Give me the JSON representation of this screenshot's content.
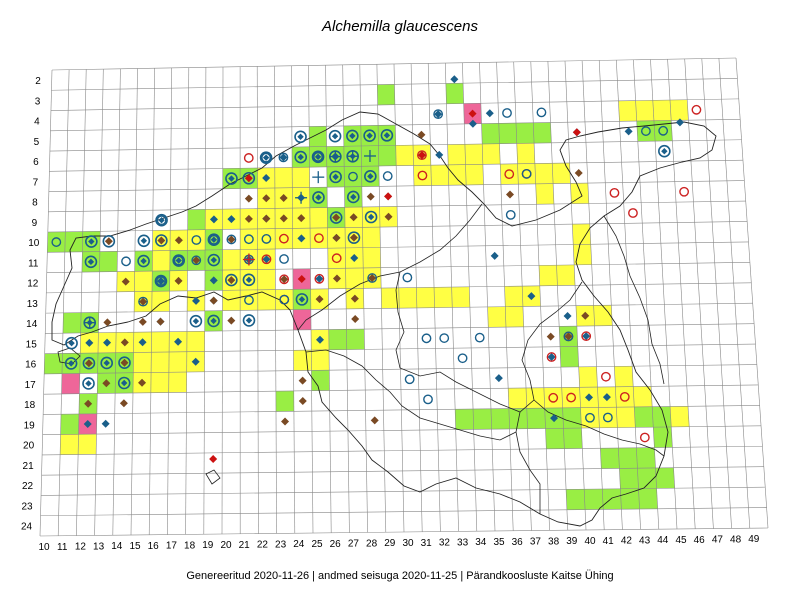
{
  "title": "Alchemilla glaucescens",
  "footer": "Genereeritud 2020-11-26  |  andmed seisuga 2020-11-25  |  Pärandkoosluste Kaitse Ühing",
  "grid": {
    "columns": [
      10,
      11,
      12,
      13,
      14,
      15,
      16,
      17,
      18,
      19,
      20,
      21,
      22,
      23,
      24,
      25,
      26,
      27,
      28,
      29,
      30,
      31,
      32,
      33,
      34,
      35,
      36,
      37,
      38,
      39,
      40,
      41,
      42,
      43,
      44,
      45,
      46,
      47,
      48,
      49
    ],
    "rows": [
      2,
      3,
      4,
      5,
      6,
      7,
      8,
      9,
      10,
      11,
      12,
      13,
      14,
      15,
      16,
      17,
      18,
      19,
      20,
      21,
      22,
      23,
      24
    ]
  },
  "colors": {
    "green": "#99ee44",
    "yellow": "#ffff44",
    "pink": "#ee6699",
    "grid": "#888888",
    "outline": "#222222",
    "diamond_blue": "#1a5f8a",
    "diamond_brown": "#7a4a24",
    "diamond_red": "#cc1111",
    "circle_red": "#cc2222",
    "circle_blue": "#1a5f8a"
  },
  "cells": {
    "green": [
      [
        33,
        3
      ],
      [
        29,
        3
      ],
      [
        35,
        5
      ],
      [
        36,
        5
      ],
      [
        37,
        5
      ],
      [
        38,
        5
      ],
      [
        25,
        5
      ],
      [
        27,
        5
      ],
      [
        28,
        5
      ],
      [
        29,
        5
      ],
      [
        24,
        6
      ],
      [
        25,
        6
      ],
      [
        26,
        6
      ],
      [
        27,
        6
      ],
      [
        28,
        6
      ],
      [
        29,
        6
      ],
      [
        44,
        5
      ],
      [
        45,
        5
      ],
      [
        20,
        7
      ],
      [
        21,
        7
      ],
      [
        26,
        7
      ],
      [
        27,
        7
      ],
      [
        28,
        7
      ],
      [
        25,
        8
      ],
      [
        27,
        8
      ],
      [
        18,
        9
      ],
      [
        26,
        9
      ],
      [
        10,
        10
      ],
      [
        11,
        10
      ],
      [
        12,
        10
      ],
      [
        19,
        10
      ],
      [
        12,
        11
      ],
      [
        13,
        11
      ],
      [
        15,
        11
      ],
      [
        17,
        11
      ],
      [
        18,
        11
      ],
      [
        19,
        11
      ],
      [
        16,
        12
      ],
      [
        19,
        12
      ],
      [
        11,
        14
      ],
      [
        12,
        14
      ],
      [
        19,
        14
      ],
      [
        10,
        16
      ],
      [
        11,
        16
      ],
      [
        12,
        16
      ],
      [
        13,
        16
      ],
      [
        14,
        16
      ],
      [
        13,
        17
      ],
      [
        14,
        17
      ],
      [
        12,
        18
      ],
      [
        11,
        19
      ],
      [
        25,
        17
      ],
      [
        23,
        18
      ],
      [
        33,
        19
      ],
      [
        34,
        19
      ],
      [
        35,
        19
      ],
      [
        36,
        19
      ],
      [
        37,
        19
      ],
      [
        38,
        19
      ],
      [
        39,
        19
      ],
      [
        43,
        19
      ],
      [
        44,
        19
      ],
      [
        38,
        20
      ],
      [
        39,
        20
      ],
      [
        44,
        20
      ],
      [
        41,
        21
      ],
      [
        42,
        21
      ],
      [
        43,
        21
      ],
      [
        42,
        22
      ],
      [
        43,
        22
      ],
      [
        44,
        22
      ],
      [
        39,
        23
      ],
      [
        40,
        23
      ],
      [
        41,
        23
      ],
      [
        42,
        23
      ],
      [
        43,
        23
      ],
      [
        39,
        16
      ],
      [
        39,
        15
      ],
      [
        26,
        15
      ],
      [
        27,
        15
      ],
      [
        24,
        13
      ]
    ],
    "yellow": [
      [
        34,
        6
      ],
      [
        35,
        6
      ],
      [
        37,
        6
      ],
      [
        32,
        7
      ],
      [
        33,
        7
      ],
      [
        34,
        7
      ],
      [
        36,
        7
      ],
      [
        37,
        7
      ],
      [
        38,
        7
      ],
      [
        39,
        7
      ],
      [
        31,
        6
      ],
      [
        30,
        6
      ],
      [
        31,
        7
      ],
      [
        22,
        7
      ],
      [
        23,
        7
      ],
      [
        24,
        7
      ],
      [
        22,
        8
      ],
      [
        23,
        8
      ],
      [
        24,
        8
      ],
      [
        23,
        9
      ],
      [
        24,
        9
      ],
      [
        25,
        9
      ],
      [
        22,
        9
      ],
      [
        27,
        9
      ],
      [
        28,
        9
      ],
      [
        29,
        9
      ],
      [
        19,
        9
      ],
      [
        20,
        9
      ],
      [
        21,
        9
      ],
      [
        21,
        10
      ],
      [
        22,
        10
      ],
      [
        23,
        10
      ],
      [
        24,
        10
      ],
      [
        25,
        10
      ],
      [
        26,
        10
      ],
      [
        27,
        10
      ],
      [
        28,
        10
      ],
      [
        16,
        10
      ],
      [
        17,
        10
      ],
      [
        18,
        10
      ],
      [
        16,
        11
      ],
      [
        20,
        11
      ],
      [
        21,
        11
      ],
      [
        22,
        11
      ],
      [
        26,
        11
      ],
      [
        27,
        11
      ],
      [
        28,
        11
      ],
      [
        14,
        12
      ],
      [
        15,
        12
      ],
      [
        17,
        12
      ],
      [
        20,
        12
      ],
      [
        21,
        12
      ],
      [
        22,
        12
      ],
      [
        26,
        12
      ],
      [
        27,
        12
      ],
      [
        28,
        12
      ],
      [
        15,
        13
      ],
      [
        16,
        13
      ],
      [
        18,
        13
      ],
      [
        20,
        13
      ],
      [
        21,
        13
      ],
      [
        22,
        13
      ],
      [
        23,
        13
      ],
      [
        25,
        13
      ],
      [
        27,
        13
      ],
      [
        29,
        13
      ],
      [
        30,
        13
      ],
      [
        31,
        13
      ],
      [
        12,
        15
      ],
      [
        13,
        15
      ],
      [
        14,
        15
      ],
      [
        15,
        15
      ],
      [
        16,
        15
      ],
      [
        17,
        15
      ],
      [
        18,
        15
      ],
      [
        15,
        16
      ],
      [
        16,
        16
      ],
      [
        17,
        16
      ],
      [
        18,
        16
      ],
      [
        15,
        17
      ],
      [
        16,
        17
      ],
      [
        17,
        17
      ],
      [
        24,
        16
      ],
      [
        25,
        16
      ],
      [
        25,
        15
      ],
      [
        36,
        13
      ],
      [
        37,
        13
      ],
      [
        35,
        14
      ],
      [
        36,
        14
      ],
      [
        40,
        14
      ],
      [
        41,
        14
      ],
      [
        38,
        12
      ],
      [
        39,
        12
      ],
      [
        40,
        18
      ],
      [
        41,
        18
      ],
      [
        42,
        17
      ],
      [
        42,
        18
      ],
      [
        43,
        18
      ],
      [
        36,
        18
      ],
      [
        37,
        18
      ],
      [
        38,
        18
      ],
      [
        39,
        18
      ],
      [
        40,
        17
      ],
      [
        40,
        19
      ],
      [
        41,
        19
      ],
      [
        42,
        19
      ],
      [
        45,
        19
      ],
      [
        11,
        20
      ],
      [
        12,
        20
      ],
      [
        43,
        4
      ],
      [
        44,
        4
      ],
      [
        45,
        4
      ],
      [
        46,
        4
      ],
      [
        33,
        6
      ],
      [
        38,
        8
      ],
      [
        40,
        8
      ],
      [
        40,
        10
      ],
      [
        40,
        11
      ],
      [
        32,
        13
      ],
      [
        33,
        13
      ]
    ],
    "pink": [
      [
        34,
        4
      ],
      [
        11,
        17
      ],
      [
        12,
        19
      ],
      [
        24,
        14
      ],
      [
        24,
        12
      ]
    ]
  },
  "symbols": {
    "diamond_blue": [
      [
        33,
        2.3
      ],
      [
        35,
        4
      ],
      [
        32,
        4
      ],
      [
        34,
        4.5
      ],
      [
        40,
        5
      ],
      [
        43,
        5
      ],
      [
        46,
        4.6
      ],
      [
        32,
        6
      ],
      [
        31,
        6
      ],
      [
        26,
        6
      ],
      [
        22,
        7
      ],
      [
        23,
        6
      ],
      [
        24,
        8
      ],
      [
        20,
        9
      ],
      [
        19,
        9
      ],
      [
        22,
        9
      ],
      [
        24,
        10
      ],
      [
        26,
        10
      ],
      [
        27,
        11
      ],
      [
        25,
        12
      ],
      [
        21,
        11
      ],
      [
        22,
        11
      ],
      [
        19,
        12
      ],
      [
        16,
        12
      ],
      [
        18,
        13
      ],
      [
        19,
        13
      ],
      [
        16,
        14
      ],
      [
        13,
        15
      ],
      [
        12,
        15
      ],
      [
        17,
        15
      ],
      [
        15,
        15
      ],
      [
        18,
        16
      ],
      [
        12,
        19
      ],
      [
        13,
        19
      ],
      [
        25,
        15
      ],
      [
        35,
        17
      ],
      [
        38,
        16
      ],
      [
        39,
        14
      ],
      [
        40,
        15
      ],
      [
        40,
        18
      ],
      [
        41,
        18
      ],
      [
        38,
        19
      ],
      [
        37,
        13
      ],
      [
        35,
        11
      ]
    ],
    "diamond_brown": [
      [
        21,
        8
      ],
      [
        23,
        8
      ],
      [
        22,
        8
      ],
      [
        24,
        9
      ],
      [
        23,
        9
      ],
      [
        22,
        9
      ],
      [
        21,
        9
      ],
      [
        20,
        10
      ],
      [
        16,
        10
      ],
      [
        13,
        10
      ],
      [
        14,
        12
      ],
      [
        15,
        13
      ],
      [
        19,
        13
      ],
      [
        23,
        12
      ],
      [
        25,
        13
      ],
      [
        27,
        13
      ],
      [
        28,
        12
      ],
      [
        26,
        12
      ],
      [
        20,
        14
      ],
      [
        16,
        14
      ],
      [
        15,
        14
      ],
      [
        13,
        14
      ],
      [
        14,
        15
      ],
      [
        12,
        16
      ],
      [
        14,
        16
      ],
      [
        15,
        17
      ],
      [
        14,
        18
      ],
      [
        12,
        18
      ],
      [
        13,
        17
      ],
      [
        24,
        17
      ],
      [
        24,
        18
      ],
      [
        28,
        19
      ],
      [
        23,
        19
      ],
      [
        31,
        5
      ],
      [
        28,
        8
      ],
      [
        29,
        8
      ],
      [
        29,
        9
      ],
      [
        27,
        9
      ],
      [
        26,
        9
      ],
      [
        36,
        8
      ],
      [
        40,
        7
      ],
      [
        40,
        14
      ],
      [
        38,
        15
      ],
      [
        39,
        15
      ],
      [
        20,
        12
      ],
      [
        17,
        12
      ],
      [
        17,
        10
      ],
      [
        18,
        11
      ],
      [
        27,
        10
      ],
      [
        26,
        10
      ],
      [
        27,
        14
      ]
    ],
    "diamond_red": [
      [
        31,
        6
      ],
      [
        34,
        4
      ],
      [
        40,
        5
      ],
      [
        21,
        7
      ],
      [
        24,
        12
      ],
      [
        29,
        8
      ],
      [
        19,
        20.8
      ]
    ],
    "circle_red": [
      [
        21,
        6
      ],
      [
        22,
        11
      ],
      [
        21,
        11
      ],
      [
        25,
        10
      ],
      [
        26,
        11
      ],
      [
        31,
        6
      ],
      [
        31,
        7
      ],
      [
        36,
        7
      ],
      [
        42,
        8
      ],
      [
        43,
        9
      ],
      [
        46,
        8
      ],
      [
        47,
        4
      ],
      [
        40,
        15
      ],
      [
        39,
        15
      ],
      [
        38,
        16
      ],
      [
        41,
        17
      ],
      [
        42,
        18
      ],
      [
        39,
        18
      ],
      [
        38,
        18
      ],
      [
        43,
        20
      ],
      [
        23,
        12
      ],
      [
        23,
        13
      ],
      [
        25,
        12
      ],
      [
        23,
        10
      ],
      [
        37,
        7
      ]
    ],
    "circle_blue": [
      [
        10,
        10
      ],
      [
        16,
        9
      ],
      [
        22,
        10
      ],
      [
        19,
        10
      ],
      [
        21,
        11
      ],
      [
        14,
        11
      ],
      [
        21,
        13
      ],
      [
        23,
        13
      ],
      [
        27,
        7
      ],
      [
        29,
        7
      ],
      [
        32,
        4
      ],
      [
        36,
        4
      ],
      [
        38,
        4
      ],
      [
        44,
        5
      ],
      [
        45,
        5
      ],
      [
        36,
        9
      ],
      [
        37,
        7
      ],
      [
        31,
        15
      ],
      [
        32,
        15
      ],
      [
        34,
        15
      ],
      [
        33,
        16
      ],
      [
        30,
        17
      ],
      [
        31,
        18
      ],
      [
        40,
        19
      ],
      [
        41,
        19
      ],
      [
        39,
        15
      ],
      [
        25,
        6
      ],
      [
        22,
        6
      ],
      [
        23,
        6
      ],
      [
        17,
        11
      ],
      [
        18,
        11
      ],
      [
        15,
        13
      ],
      [
        16,
        12
      ],
      [
        18,
        10
      ],
      [
        20,
        10
      ],
      [
        21,
        10
      ],
      [
        30,
        12
      ],
      [
        28,
        12
      ],
      [
        23,
        11
      ]
    ],
    "circle_dot": [
      [
        24,
        5
      ],
      [
        26,
        5
      ],
      [
        27,
        5
      ],
      [
        28,
        5
      ],
      [
        29,
        5
      ],
      [
        25,
        6
      ],
      [
        26,
        6
      ],
      [
        27,
        6
      ],
      [
        28,
        7
      ],
      [
        26,
        7
      ],
      [
        27,
        8
      ],
      [
        25,
        8
      ],
      [
        26,
        9
      ],
      [
        28,
        9
      ],
      [
        27,
        10
      ],
      [
        15,
        10
      ],
      [
        13,
        10
      ],
      [
        12,
        10
      ],
      [
        16,
        10
      ],
      [
        15,
        11
      ],
      [
        17,
        11
      ],
      [
        19,
        11
      ],
      [
        12,
        11
      ],
      [
        16,
        12
      ],
      [
        20,
        12
      ],
      [
        21,
        12
      ],
      [
        19,
        10
      ],
      [
        24,
        13
      ],
      [
        19,
        14
      ],
      [
        21,
        14
      ],
      [
        18,
        14
      ],
      [
        13,
        16
      ],
      [
        14,
        16
      ],
      [
        11,
        16
      ],
      [
        12,
        17
      ],
      [
        14,
        17
      ],
      [
        12,
        14
      ],
      [
        12,
        16
      ],
      [
        11,
        15
      ],
      [
        45,
        6
      ],
      [
        20,
        7
      ],
      [
        21,
        7
      ],
      [
        22,
        6
      ],
      [
        24,
        6
      ],
      [
        16,
        9
      ]
    ],
    "plus_blue": [
      [
        24,
        8
      ],
      [
        25,
        7
      ],
      [
        26,
        6
      ],
      [
        27,
        6
      ],
      [
        28,
        6
      ],
      [
        12,
        14
      ]
    ],
    "plus_red": [
      [
        21,
        11
      ]
    ]
  }
}
